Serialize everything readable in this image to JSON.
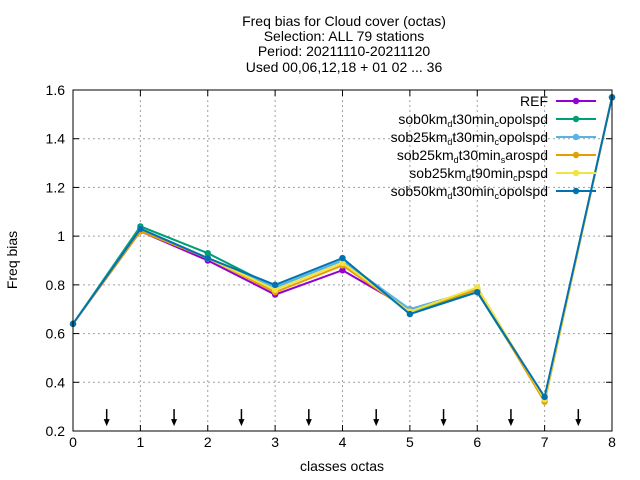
{
  "chart_data": {
    "type": "line",
    "title_lines": [
      "Freq bias  for Cloud cover (octas)",
      "Selection: ALL     79 stations",
      "Period: 20211110-20211120",
      "Used 00,06,12,18 + 01 02 ... 36"
    ],
    "xlabel": "classes octas",
    "ylabel": "Freq bias",
    "xlim": [
      0,
      8
    ],
    "ylim": [
      0.2,
      1.6
    ],
    "xticks": [
      "0",
      "1",
      "2",
      "3",
      "4",
      "5",
      "6",
      "7",
      "8"
    ],
    "yticks": [
      "0.2",
      "0.4",
      "0.6",
      "0.8",
      "1",
      "1.2",
      "1.4",
      "1.6"
    ],
    "grid": true,
    "legend_position": "top-right",
    "x": [
      0,
      1,
      2,
      3,
      4,
      5,
      6,
      7,
      8
    ],
    "series": [
      {
        "name": "REF",
        "name_parts": [
          {
            "t": "REF"
          }
        ],
        "color": "#9400d3",
        "values": [
          0.64,
          1.02,
          0.9,
          0.76,
          0.86,
          0.7,
          0.78,
          0.33,
          1.57
        ]
      },
      {
        "name": "sob0km_d t30min_c opolspd",
        "name_parts": [
          {
            "t": "sob0km"
          },
          {
            "t": "d",
            "sub": true
          },
          {
            "t": "t30min"
          },
          {
            "t": "c",
            "sub": true
          },
          {
            "t": "opolspd"
          }
        ],
        "color": "#009e73",
        "values": [
          0.64,
          1.04,
          0.93,
          0.79,
          0.9,
          0.69,
          0.77,
          0.33,
          1.57
        ]
      },
      {
        "name": "sob25km_d t30min_c opolspd",
        "name_parts": [
          {
            "t": "sob25km"
          },
          {
            "t": "d",
            "sub": true
          },
          {
            "t": "t30min"
          },
          {
            "t": "c",
            "sub": true
          },
          {
            "t": "opolspd"
          }
        ],
        "color": "#56b4e9",
        "values": [
          0.64,
          1.03,
          0.91,
          0.79,
          0.9,
          0.7,
          0.78,
          0.33,
          1.57
        ]
      },
      {
        "name": "sob25km_d t30min_s arospd",
        "name_parts": [
          {
            "t": "sob25km"
          },
          {
            "t": "d",
            "sub": true
          },
          {
            "t": "t30min"
          },
          {
            "t": "s",
            "sub": true
          },
          {
            "t": "arospd"
          }
        ],
        "color": "#e69f00",
        "values": [
          0.64,
          1.02,
          0.91,
          0.77,
          0.88,
          0.69,
          0.78,
          0.32,
          1.57
        ]
      },
      {
        "name": "sob25km_d t90min_c pspd",
        "name_parts": [
          {
            "t": "sob25km"
          },
          {
            "t": "d",
            "sub": true
          },
          {
            "t": "t90min"
          },
          {
            "t": "c",
            "sub": true
          },
          {
            "t": "pspd"
          }
        ],
        "color": "#f0e442",
        "values": [
          0.64,
          1.03,
          0.91,
          0.78,
          0.89,
          0.69,
          0.79,
          0.33,
          1.57
        ]
      },
      {
        "name": "sob50km_d t30min_c opolspd",
        "name_parts": [
          {
            "t": "sob50km"
          },
          {
            "t": "d",
            "sub": true
          },
          {
            "t": "t30min"
          },
          {
            "t": "c",
            "sub": true
          },
          {
            "t": "opolspd"
          }
        ],
        "color": "#0072b2",
        "values": [
          0.64,
          1.03,
          0.91,
          0.8,
          0.91,
          0.68,
          0.77,
          0.34,
          1.57
        ]
      }
    ],
    "arrow_x": [
      0.5,
      1.5,
      2.5,
      3.5,
      4.5,
      5.5,
      6.5,
      7.5
    ],
    "arrow_y": [
      0.29,
      0.22
    ]
  }
}
